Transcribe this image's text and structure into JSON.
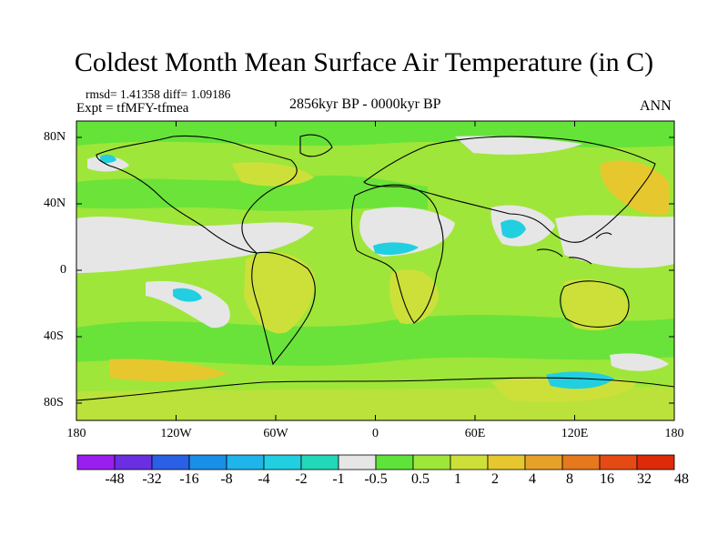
{
  "title": "Coldest Month Mean Surface Air Temperature (in C)",
  "stats": {
    "line1": "rmsd= 1.41358 diff= 1.09186",
    "line2": "Expt = tfMFY-tfmea"
  },
  "subtitle_center": "2856kyr BP - 0000kyr BP",
  "subtitle_right": "ANN",
  "lat_labels": [
    "80N",
    "40N",
    "0",
    "40S",
    "80S"
  ],
  "lon_labels": [
    "180",
    "120W",
    "60W",
    "0",
    "60E",
    "120E",
    "180"
  ],
  "colorbar": {
    "colors": [
      "#9b1ef0",
      "#6a2fe0",
      "#2a5fe6",
      "#1a8fe6",
      "#1fb4ea",
      "#22cfe0",
      "#21d8b9",
      "#e6e6e6",
      "#5fe23a",
      "#9fe63a",
      "#cde03a",
      "#e6c82e",
      "#e6a228",
      "#e6781e",
      "#e64a14",
      "#dd2a08"
    ],
    "labels": [
      "-48",
      "-32",
      "-16",
      "-8",
      "-4",
      "-2",
      "-1",
      "-0.5",
      "0.5",
      "1",
      "2",
      "4",
      "8",
      "16",
      "32",
      "48"
    ]
  }
}
